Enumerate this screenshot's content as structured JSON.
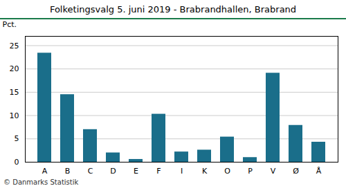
{
  "chart_data": {
    "type": "bar",
    "title": "Folketingsvalg 5. juni 2019 - Brabrandhallen, Brabrand",
    "ylabel": "Pct.",
    "caption": "© Danmarks Statistik",
    "categories": [
      "A",
      "B",
      "C",
      "D",
      "E",
      "F",
      "I",
      "K",
      "O",
      "P",
      "V",
      "Ø",
      "Å"
    ],
    "values": [
      23.4,
      14.5,
      7.0,
      2.0,
      0.6,
      10.3,
      2.2,
      2.6,
      5.4,
      1.0,
      19.1,
      7.9,
      4.3
    ],
    "color": "#1a6e8a",
    "ylim": [
      0,
      27
    ],
    "yticks": [
      0,
      5,
      10,
      15,
      20,
      25
    ],
    "grid": true
  }
}
